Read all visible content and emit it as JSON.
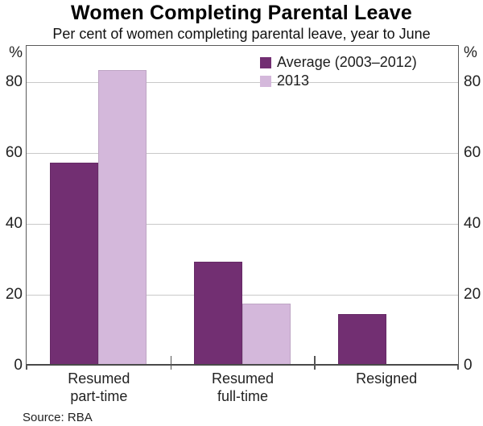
{
  "title": "Women Completing Parental Leave",
  "subtitle": "Per cent of women completing parental leave, year to June",
  "source_note": "Source: RBA",
  "y_axis": {
    "unit": "%",
    "ticks": [
      0,
      20,
      40,
      60,
      80
    ],
    "sides": [
      "left",
      "right"
    ]
  },
  "legend": {
    "items": [
      {
        "label": "Average (2003–2012)"
      },
      {
        "label": "2013"
      }
    ]
  },
  "categories_display": [
    [
      "Resumed",
      "part-time"
    ],
    [
      "Resumed",
      "full-time"
    ],
    [
      "Resigned"
    ]
  ],
  "colors": {
    "average": "#722f72",
    "year2013": "#d4b8db",
    "gridline": "#c9c9c9",
    "frame": "#5a5a5a",
    "baseline": "#4a4a4a"
  },
  "chart_data": {
    "type": "bar",
    "title": "Women Completing Parental Leave",
    "subtitle": "Per cent of women completing parental leave, year to June",
    "categories": [
      "Resumed part-time",
      "Resumed full-time",
      "Resigned"
    ],
    "series": [
      {
        "name": "Average (2003–2012)",
        "color": "#722f72",
        "values": [
          57,
          29,
          14
        ]
      },
      {
        "name": "2013",
        "color": "#d4b8db",
        "values": [
          83,
          17,
          null
        ]
      }
    ],
    "xlabel": "",
    "ylabel": "%",
    "ylim": [
      0,
      90
    ],
    "yticks": [
      0,
      20,
      40,
      60,
      80
    ],
    "grid": true,
    "legend_position": "top-right",
    "source": "RBA"
  }
}
